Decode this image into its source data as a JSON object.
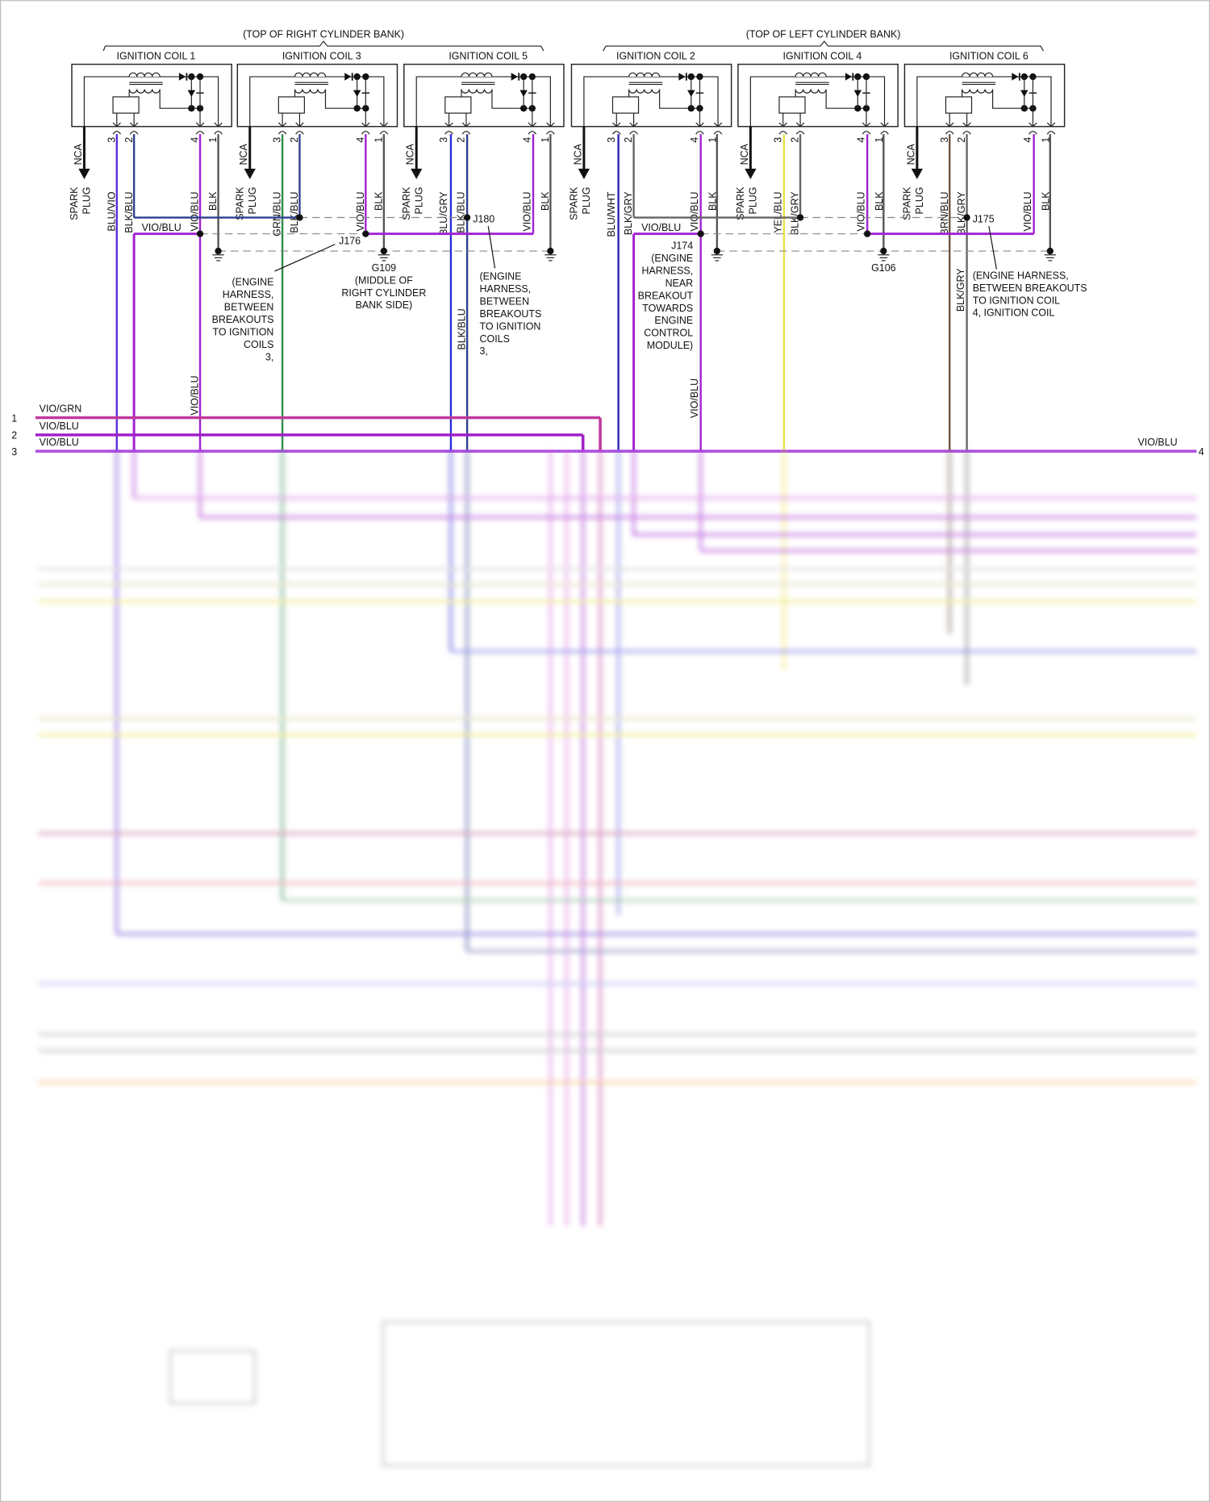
{
  "banks": [
    {
      "title": "(TOP OF RIGHT CYLINDER BANK)"
    },
    {
      "title": "(TOP OF LEFT CYLINDER BANK)"
    }
  ],
  "coils": [
    {
      "name": "IGNITION COIL 1",
      "pin3": "BLU/VIO",
      "pin2": "BLK/BLU",
      "pin4": "VIO/BLU",
      "pin1": "BLK",
      "c3": "#5a2bd6",
      "c2": "#2e3f8f"
    },
    {
      "name": "IGNITION COIL 3",
      "pin3": "GRN/BLU",
      "pin2": "BLK/BLU",
      "pin4": "VIO/BLU",
      "pin1": "BLK",
      "c3": "#2f8a4a",
      "c2": "#2e3f8f"
    },
    {
      "name": "IGNITION COIL 5",
      "pin3": "BLU/GRY",
      "pin2": "BLK/BLU",
      "pin4": "VIO/BLU",
      "pin1": "BLK",
      "c3": "#2a2ad6",
      "c2": "#2e3f8f"
    },
    {
      "name": "IGNITION COIL 2",
      "pin3": "BLU/WHT",
      "pin2": "BLK/GRY",
      "pin4": "VIO/BLU",
      "pin1": "BLK",
      "c3": "#2424b0",
      "c2": "#666666"
    },
    {
      "name": "IGNITION COIL 4",
      "pin3": "YEL/BLU",
      "pin2": "BLK/GRY",
      "pin4": "VIO/BLU",
      "pin1": "BLK",
      "c3": "#e8e04a",
      "c2": "#666666"
    },
    {
      "name": "IGNITION COIL 6",
      "pin3": "BRN/BLU",
      "pin2": "BLK/GRY",
      "pin4": "VIO/BLU",
      "pin1": "BLK",
      "c3": "#6b5540",
      "c2": "#666666"
    }
  ],
  "coil_common": {
    "nca": "NCA",
    "spark": "SPARK",
    "plug": "PLUG",
    "pin_numbers": [
      "3",
      "2",
      "4",
      "1"
    ]
  },
  "splices": {
    "j180": "J180",
    "j176": "J176",
    "j175": "J175",
    "j174": "J174"
  },
  "grounds": {
    "g109": "G109",
    "g106": "G106"
  },
  "wire_labels": {
    "vio_blu": "VIO/BLU",
    "blk_blu": "BLK/BLU",
    "blk_gry": "BLK/GRY"
  },
  "notes": {
    "j176": [
      "(ENGINE",
      "HARNESS,",
      "BETWEEN",
      "BREAKOUTS",
      "TO IGNITION",
      "COILS",
      "3,"
    ],
    "g109": [
      "(MIDDLE OF",
      "RIGHT CYLINDER",
      "BANK SIDE)"
    ],
    "j180": [
      "(ENGINE",
      "HARNESS,",
      "BETWEEN",
      "BREAKOUTS",
      "TO IGNITION",
      "COILS",
      "3,"
    ],
    "j174": [
      "(ENGINE",
      "HARNESS,",
      "NEAR",
      "BREAKOUT",
      "TOWARDS",
      "ENGINE",
      "CONTROL",
      "MODULE)"
    ],
    "j175": [
      "(ENGINE HARNESS,",
      "BETWEEN BREAKOUTS",
      "TO IGNITION COIL",
      "4, IGNITION COIL"
    ]
  },
  "rows": [
    {
      "num": "1",
      "label": "VIO/GRN",
      "color": "#c0399a"
    },
    {
      "num": "2",
      "label": "VIO/BLU",
      "color": "#a020c8"
    },
    {
      "num": "3",
      "label": "VIO/BLU",
      "right_num": "4",
      "right_label": "VIO/BLU",
      "color": "#b050e0"
    }
  ],
  "colors": {
    "violet": "#a020d0",
    "black": "#555555",
    "blue": "#2a2ad6",
    "green": "#2f8a4a",
    "yellow": "#e8e04a"
  }
}
